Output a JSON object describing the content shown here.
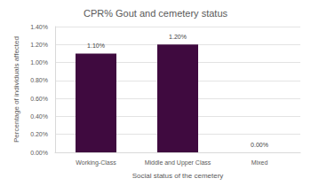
{
  "chart_data": {
    "type": "bar",
    "title": "CPR% Gout and cemetery status",
    "x_label": "Social status of the cemetery",
    "y_label": "Percentage of individuals affected",
    "categories": [
      "Working-Class",
      "Middle and Upper Class",
      "Mixed"
    ],
    "values": [
      1.1,
      1.2,
      0
    ],
    "value_labels": [
      "1.10%",
      "1.20%",
      "0.00%"
    ],
    "color": "#3f0a3f",
    "ylim": [
      0,
      1.4
    ],
    "yticks": [
      {
        "value": 0,
        "label": "0.00%"
      },
      {
        "value": 0.2,
        "label": "0.20%"
      },
      {
        "value": 0.4,
        "label": "0.40%"
      },
      {
        "value": 0.6,
        "label": "0.60%"
      },
      {
        "value": 0.8,
        "label": "0.80%"
      },
      {
        "value": 1.0,
        "label": "1.00%"
      },
      {
        "value": 1.2,
        "label": "1.20%"
      },
      {
        "value": 1.4,
        "label": "1.40%"
      }
    ],
    "grid": true,
    "data_labels": true
  }
}
